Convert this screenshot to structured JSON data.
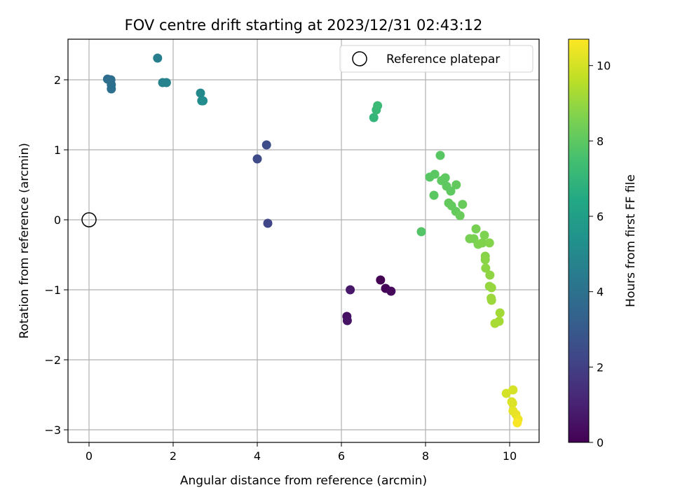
{
  "chart_data": {
    "type": "scatter",
    "title": "FOV centre drift starting at 2023/12/31 02:43:12",
    "xlabel": "Angular distance from reference (arcmin)",
    "ylabel": "Rotation from reference (arcmin)",
    "xlim": [
      -0.5,
      10.7
    ],
    "ylim": [
      -3.18,
      2.58
    ],
    "xticks": [
      0,
      2,
      4,
      6,
      8,
      10
    ],
    "yticks": [
      -3,
      -2,
      -1,
      0,
      1,
      2
    ],
    "grid": true,
    "legend": {
      "position": "top-right",
      "entries": [
        "Reference platepar"
      ]
    },
    "reference_point": {
      "x": 0,
      "y": 0,
      "label": "Reference platepar"
    },
    "colorbar": {
      "label": "Hours from first FF file",
      "range": [
        0,
        10.7
      ],
      "ticks": [
        0,
        2,
        4,
        6,
        8,
        10
      ],
      "colormap": "viridis"
    },
    "points": [
      {
        "x": 6.93,
        "y": -0.86,
        "c": 0.0
      },
      {
        "x": 7.05,
        "y": -0.98,
        "c": 0.1
      },
      {
        "x": 7.18,
        "y": -1.02,
        "c": 0.2
      },
      {
        "x": 6.13,
        "y": -1.38,
        "c": 0.5
      },
      {
        "x": 6.14,
        "y": -1.44,
        "c": 0.55
      },
      {
        "x": 6.21,
        "y": -1.0,
        "c": 0.7
      },
      {
        "x": 4.25,
        "y": -0.05,
        "c": 2.2
      },
      {
        "x": 4.0,
        "y": 0.87,
        "c": 2.4
      },
      {
        "x": 4.22,
        "y": 1.07,
        "c": 2.5
      },
      {
        "x": 0.44,
        "y": 2.01,
        "c": 3.8
      },
      {
        "x": 0.52,
        "y": 2.0,
        "c": 3.85
      },
      {
        "x": 0.53,
        "y": 1.93,
        "c": 3.9
      },
      {
        "x": 0.53,
        "y": 1.87,
        "c": 3.95
      },
      {
        "x": 1.63,
        "y": 2.31,
        "c": 4.6
      },
      {
        "x": 1.75,
        "y": 1.96,
        "c": 4.7
      },
      {
        "x": 1.84,
        "y": 1.96,
        "c": 4.75
      },
      {
        "x": 2.65,
        "y": 1.81,
        "c": 5.0
      },
      {
        "x": 2.68,
        "y": 1.7,
        "c": 5.1
      },
      {
        "x": 2.71,
        "y": 1.7,
        "c": 5.15
      },
      {
        "x": 6.77,
        "y": 1.46,
        "c": 7.0
      },
      {
        "x": 6.83,
        "y": 1.57,
        "c": 7.1
      },
      {
        "x": 6.86,
        "y": 1.63,
        "c": 7.2
      },
      {
        "x": 7.9,
        "y": -0.17,
        "c": 7.8
      },
      {
        "x": 8.35,
        "y": 0.92,
        "c": 7.9
      },
      {
        "x": 8.1,
        "y": 0.61,
        "c": 7.9
      },
      {
        "x": 8.22,
        "y": 0.65,
        "c": 7.95
      },
      {
        "x": 8.2,
        "y": 0.35,
        "c": 7.95
      },
      {
        "x": 8.38,
        "y": 0.56,
        "c": 8.0
      },
      {
        "x": 8.47,
        "y": 0.6,
        "c": 8.0
      },
      {
        "x": 8.5,
        "y": 0.48,
        "c": 8.05
      },
      {
        "x": 8.6,
        "y": 0.41,
        "c": 8.05
      },
      {
        "x": 8.73,
        "y": 0.5,
        "c": 8.1
      },
      {
        "x": 8.55,
        "y": 0.24,
        "c": 8.1
      },
      {
        "x": 8.62,
        "y": 0.2,
        "c": 8.15
      },
      {
        "x": 8.72,
        "y": 0.12,
        "c": 8.15
      },
      {
        "x": 8.88,
        "y": 0.22,
        "c": 8.2
      },
      {
        "x": 8.82,
        "y": 0.06,
        "c": 8.2
      },
      {
        "x": 9.05,
        "y": -0.27,
        "c": 8.5
      },
      {
        "x": 9.2,
        "y": -0.13,
        "c": 8.5
      },
      {
        "x": 9.15,
        "y": -0.27,
        "c": 8.55
      },
      {
        "x": 9.25,
        "y": -0.35,
        "c": 8.6
      },
      {
        "x": 9.4,
        "y": -0.22,
        "c": 8.6
      },
      {
        "x": 9.35,
        "y": -0.33,
        "c": 8.65
      },
      {
        "x": 9.52,
        "y": -0.33,
        "c": 8.7
      },
      {
        "x": 9.42,
        "y": -0.52,
        "c": 8.75
      },
      {
        "x": 9.42,
        "y": -0.57,
        "c": 8.8
      },
      {
        "x": 9.43,
        "y": -0.69,
        "c": 8.85
      },
      {
        "x": 9.53,
        "y": -0.79,
        "c": 8.9
      },
      {
        "x": 9.52,
        "y": -0.95,
        "c": 8.95
      },
      {
        "x": 9.57,
        "y": -0.97,
        "c": 9.0
      },
      {
        "x": 9.56,
        "y": -1.12,
        "c": 9.05
      },
      {
        "x": 9.57,
        "y": -1.15,
        "c": 9.1
      },
      {
        "x": 9.77,
        "y": -1.33,
        "c": 9.2
      },
      {
        "x": 9.75,
        "y": -1.45,
        "c": 9.25
      },
      {
        "x": 9.65,
        "y": -1.48,
        "c": 9.3
      },
      {
        "x": 9.92,
        "y": -2.48,
        "c": 10.0
      },
      {
        "x": 10.08,
        "y": -2.43,
        "c": 10.05
      },
      {
        "x": 10.05,
        "y": -2.6,
        "c": 10.1
      },
      {
        "x": 10.07,
        "y": -2.62,
        "c": 10.15
      },
      {
        "x": 10.08,
        "y": -2.73,
        "c": 10.25
      },
      {
        "x": 10.15,
        "y": -2.78,
        "c": 10.35
      },
      {
        "x": 10.2,
        "y": -2.85,
        "c": 10.45
      },
      {
        "x": 10.18,
        "y": -2.9,
        "c": 10.6
      }
    ]
  },
  "colors": {
    "reference_marker": "#000000",
    "grid": "#b0b0b0",
    "axes": "#000000"
  }
}
